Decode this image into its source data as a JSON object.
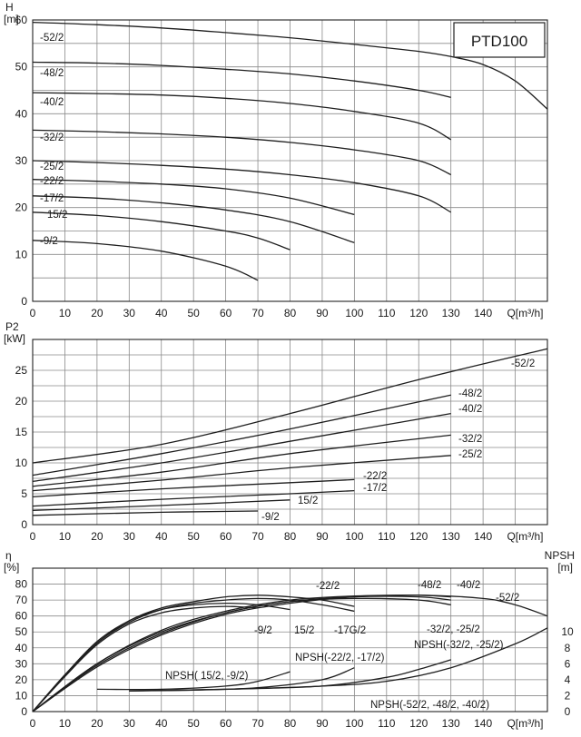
{
  "model_box": "PTD100",
  "chart_data": [
    {
      "type": "line",
      "title": "",
      "ylabel": "H",
      "yunit": "[m]",
      "xlabel": "Q",
      "xunit": "[m³/h]",
      "xlim": [
        0,
        160
      ],
      "ylim": [
        0,
        60
      ],
      "xticks": [
        0,
        10,
        20,
        30,
        40,
        50,
        60,
        70,
        80,
        90,
        100,
        110,
        120,
        130,
        140
      ],
      "yticks": [
        0,
        10,
        20,
        30,
        40,
        50,
        60
      ],
      "series": [
        {
          "name": "-52/2",
          "x": [
            0,
            20,
            40,
            60,
            80,
            100,
            120,
            130,
            140,
            150,
            160
          ],
          "y": [
            59.5,
            59,
            58.3,
            57.3,
            56.2,
            54.8,
            53.3,
            52.2,
            50.5,
            47,
            41
          ]
        },
        {
          "name": "-48/2",
          "x": [
            0,
            20,
            40,
            60,
            80,
            100,
            120,
            130
          ],
          "y": [
            51,
            50.8,
            50.3,
            49.5,
            48.5,
            47,
            45,
            43.5
          ]
        },
        {
          "name": "-40/2",
          "x": [
            0,
            20,
            40,
            60,
            80,
            100,
            120,
            130
          ],
          "y": [
            44.5,
            44.3,
            44,
            43.3,
            42.2,
            40.5,
            38,
            34.5
          ]
        },
        {
          "name": "-32/2",
          "x": [
            0,
            20,
            40,
            60,
            80,
            100,
            120,
            130
          ],
          "y": [
            36.5,
            36.2,
            35.7,
            35,
            33.9,
            32.3,
            30,
            27
          ]
        },
        {
          "name": "-25/2",
          "x": [
            0,
            20,
            40,
            60,
            80,
            100,
            120,
            130
          ],
          "y": [
            30,
            29.6,
            29,
            28.2,
            27,
            25.3,
            22.5,
            19
          ]
        },
        {
          "name": "-22/2",
          "x": [
            0,
            20,
            40,
            60,
            80,
            100
          ],
          "y": [
            26,
            25.6,
            25,
            24,
            22,
            18.5
          ]
        },
        {
          "name": "-17/2",
          "x": [
            0,
            20,
            40,
            60,
            80,
            100
          ],
          "y": [
            22.5,
            22,
            21,
            19.5,
            17,
            12.5
          ]
        },
        {
          "name": "15/2",
          "x": [
            0,
            20,
            40,
            60,
            70,
            80
          ],
          "y": [
            19,
            18.3,
            17,
            15,
            13.5,
            11
          ]
        },
        {
          "name": "-9/2",
          "x": [
            0,
            20,
            40,
            60,
            70
          ],
          "y": [
            13,
            12.3,
            10.7,
            7.5,
            4.5
          ]
        }
      ]
    },
    {
      "type": "line",
      "title": "",
      "ylabel": "P2",
      "yunit": "[kW]",
      "xlabel": "Q",
      "xunit": "[m³/h]",
      "xlim": [
        0,
        160
      ],
      "ylim": [
        0,
        30
      ],
      "xticks": [
        0,
        10,
        20,
        30,
        40,
        50,
        60,
        70,
        80,
        90,
        100,
        110,
        120,
        130,
        140
      ],
      "yticks": [
        0,
        5,
        10,
        15,
        20,
        25
      ],
      "series": [
        {
          "name": "-52/2",
          "x": [
            0,
            40,
            80,
            120,
            160
          ],
          "y": [
            10,
            13,
            18,
            23.5,
            28.5
          ]
        },
        {
          "name": "-48/2",
          "x": [
            0,
            40,
            80,
            130
          ],
          "y": [
            8,
            11.5,
            15.5,
            21
          ]
        },
        {
          "name": "-40/2",
          "x": [
            0,
            40,
            80,
            130
          ],
          "y": [
            7,
            10,
            13.5,
            18
          ]
        },
        {
          "name": "-32/2",
          "x": [
            0,
            40,
            80,
            130
          ],
          "y": [
            6.2,
            8.5,
            11.5,
            14.5
          ]
        },
        {
          "name": "-25/2",
          "x": [
            0,
            40,
            80,
            130
          ],
          "y": [
            5.5,
            7.2,
            9.2,
            11.2
          ]
        },
        {
          "name": "-22/2",
          "x": [
            0,
            40,
            80,
            100
          ],
          "y": [
            4.5,
            5.8,
            6.8,
            7.3
          ]
        },
        {
          "name": "-17/2",
          "x": [
            0,
            40,
            80,
            100
          ],
          "y": [
            3,
            4.1,
            5,
            5.5
          ]
        },
        {
          "name": "15/2",
          "x": [
            0,
            40,
            80
          ],
          "y": [
            2.3,
            3.1,
            4
          ]
        },
        {
          "name": "-9/2",
          "x": [
            0,
            40,
            70
          ],
          "y": [
            1.5,
            2,
            2.2
          ]
        }
      ]
    },
    {
      "type": "line",
      "title": "",
      "ylabel": "η",
      "yunit": "[%]",
      "y2label": "NPSH",
      "y2unit": "[m]",
      "xlabel": "Q",
      "xunit": "[m³/h]",
      "xlim": [
        0,
        160
      ],
      "ylim": [
        0,
        90
      ],
      "y2lim": [
        0,
        18
      ],
      "xticks": [
        0,
        10,
        20,
        30,
        40,
        50,
        60,
        70,
        80,
        90,
        100,
        110,
        120,
        130,
        140
      ],
      "yticks": [
        0,
        10,
        20,
        30,
        40,
        50,
        60,
        70,
        80
      ],
      "y2ticks": [
        0,
        2,
        4,
        6,
        8,
        10
      ],
      "series": [
        {
          "name": "-9/2",
          "axis": "eta",
          "x": [
            0,
            10,
            20,
            30,
            40,
            50,
            60,
            70
          ],
          "y": [
            0,
            22,
            42,
            55,
            62,
            65,
            66,
            65
          ]
        },
        {
          "name": "15/2",
          "axis": "eta",
          "x": [
            0,
            10,
            20,
            30,
            40,
            50,
            60,
            70,
            80
          ],
          "y": [
            0,
            23,
            44,
            57,
            64,
            67,
            68,
            67,
            64
          ]
        },
        {
          "name": "-17G/2",
          "axis": "eta",
          "x": [
            0,
            10,
            20,
            30,
            40,
            50,
            60,
            70,
            80,
            90,
            100
          ],
          "y": [
            0,
            22,
            43,
            56,
            64,
            68,
            70,
            71,
            70,
            67,
            63
          ]
        },
        {
          "name": "-22/2",
          "axis": "eta",
          "x": [
            0,
            10,
            20,
            30,
            40,
            50,
            60,
            70,
            80,
            90,
            100
          ],
          "y": [
            0,
            23,
            43,
            57,
            65,
            69,
            72,
            73,
            72,
            70,
            66
          ]
        },
        {
          "name": "-32/2, -25/2",
          "axis": "eta",
          "x": [
            0,
            20,
            40,
            60,
            80,
            100,
            120,
            130
          ],
          "y": [
            0,
            30,
            50,
            62,
            69,
            71,
            70,
            67
          ]
        },
        {
          "name": "-48/2",
          "axis": "eta",
          "x": [
            0,
            20,
            40,
            60,
            80,
            100,
            120,
            130
          ],
          "y": [
            0,
            29,
            49,
            62,
            69,
            72,
            72,
            70
          ]
        },
        {
          "name": "-40/2",
          "axis": "eta",
          "x": [
            0,
            20,
            40,
            60,
            80,
            100,
            120,
            130
          ],
          "y": [
            0,
            30,
            51,
            63,
            70,
            72.5,
            73,
            72
          ]
        },
        {
          "name": "-52/2",
          "axis": "eta",
          "x": [
            0,
            20,
            40,
            60,
            80,
            100,
            120,
            140,
            150,
            160
          ],
          "y": [
            0,
            28,
            48,
            61,
            68,
            72,
            73,
            71,
            67,
            60
          ]
        },
        {
          "name": "NPSH( 15/2, -9/2)",
          "axis": "npsh",
          "x": [
            20,
            40,
            60,
            70,
            80
          ],
          "y": [
            2.8,
            2.8,
            3.2,
            3.8,
            5
          ]
        },
        {
          "name": "NPSH(-22/2, -17/2)",
          "axis": "npsh",
          "x": [
            30,
            50,
            70,
            90,
            100
          ],
          "y": [
            2.6,
            2.7,
            3,
            4,
            5.5
          ]
        },
        {
          "name": "NPSH(-32/2, -25/2)",
          "axis": "npsh",
          "x": [
            30,
            60,
            90,
            110,
            120,
            130
          ],
          "y": [
            2.6,
            2.8,
            3.2,
            4.3,
            5.3,
            6.5
          ]
        },
        {
          "name": "NPSH(-52/2, -48/2, -40/2)",
          "axis": "npsh",
          "x": [
            30,
            60,
            90,
            110,
            130,
            150,
            160
          ],
          "y": [
            2.6,
            2.8,
            3.2,
            3.8,
            5.5,
            8.5,
            10.5
          ]
        }
      ]
    }
  ]
}
